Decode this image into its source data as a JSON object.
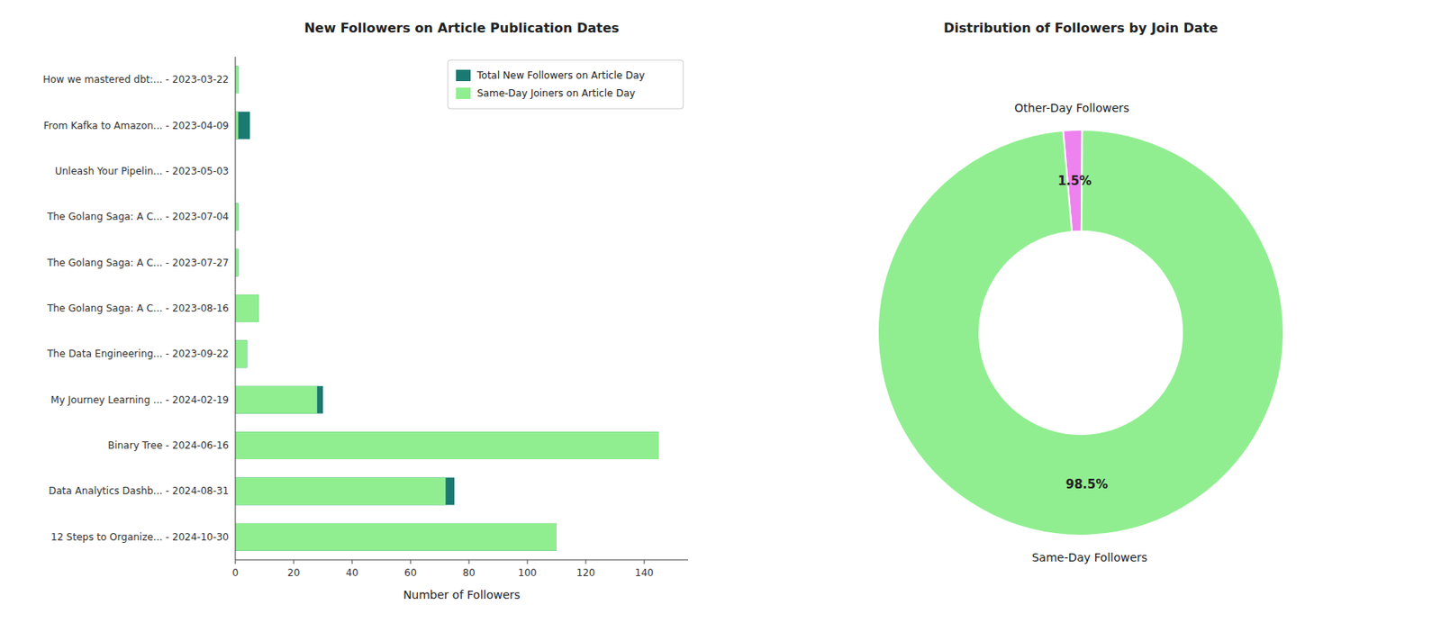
{
  "chart_data": [
    {
      "type": "bar",
      "title": "New Followers on Article Publication Dates",
      "x_label": "Number of Followers",
      "orientation": "horizontal",
      "stacked": false,
      "categories": [
        "How we mastered dbt:... - 2023-03-22",
        "From Kafka to Amazon... - 2023-04-09",
        "Unleash Your Pipelin... - 2023-05-03",
        "The Golang Saga: A C... - 2023-07-04",
        "The Golang Saga: A C... - 2023-07-27",
        "The Golang Saga: A C... - 2023-08-16",
        "The Data Engineering... - 2023-09-22",
        "My Journey Learning ... - 2024-02-19",
        "Binary Tree - 2024-06-16",
        "Data Analytics Dashb... - 2024-08-31",
        "12 Steps to Organize... - 2024-10-30"
      ],
      "series": [
        {
          "name": "Total New Followers on Article Day",
          "color": "#1a7a72",
          "values": [
            1,
            5,
            0,
            1,
            1,
            8,
            4,
            30,
            145,
            75,
            110
          ]
        },
        {
          "name": "Same-Day Joiners on Article Day",
          "color": "#90ee90",
          "values": [
            1,
            1,
            0,
            1,
            1,
            8,
            4,
            28,
            145,
            72,
            110
          ]
        }
      ],
      "xlim": [
        0,
        155
      ],
      "xticks": [
        0,
        20,
        40,
        60,
        80,
        100,
        120,
        140
      ],
      "grid": false,
      "legend": "upper right"
    },
    {
      "type": "pie",
      "title": "Distribution of Followers by Join Date",
      "categories": [
        "Other-Day Followers",
        "Same-Day Followers"
      ],
      "values": [
        1.5,
        98.5
      ],
      "value_labels": [
        "1.5%",
        "98.5%"
      ],
      "colors": [
        "#ee82ee",
        "#90ee90"
      ],
      "data_labels": true
    }
  ]
}
